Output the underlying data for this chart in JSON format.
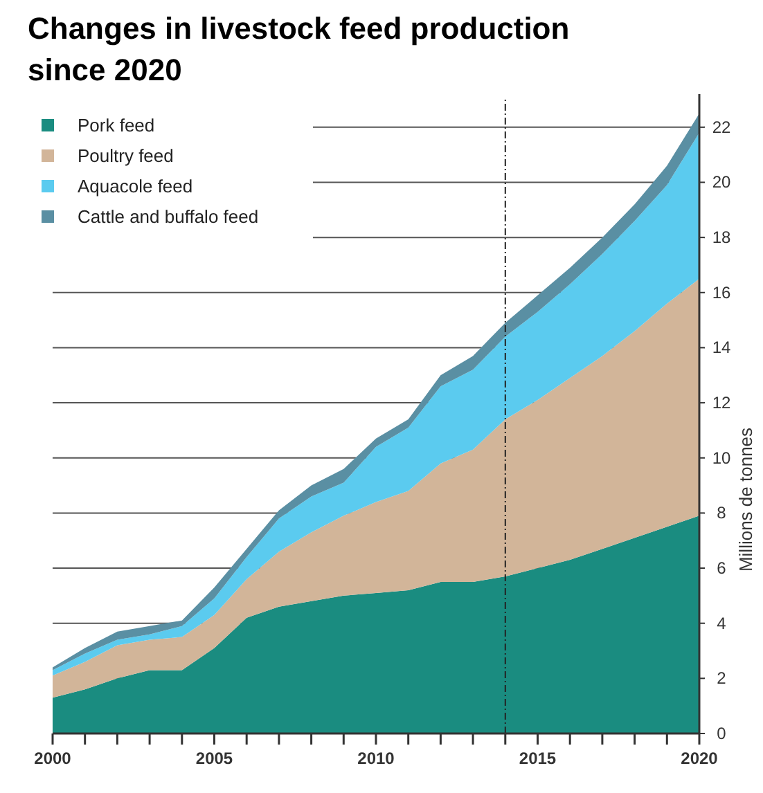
{
  "chart_data": {
    "type": "area",
    "stacked": true,
    "title": "Changes in livestock feed production since 2020",
    "ylabel": "Millions de tonnes",
    "x": [
      2000,
      2001,
      2002,
      2003,
      2004,
      2005,
      2006,
      2007,
      2008,
      2009,
      2010,
      2011,
      2012,
      2013,
      2014,
      2015,
      2016,
      2017,
      2018,
      2019,
      2020
    ],
    "series": [
      {
        "name": "Pork feed",
        "color": "#1a8c80",
        "values": [
          1.3,
          1.6,
          2.0,
          2.3,
          2.3,
          3.1,
          4.2,
          4.6,
          4.8,
          5.0,
          5.1,
          5.2,
          5.5,
          5.5,
          5.7,
          6.0,
          6.3,
          6.7,
          7.1,
          7.5,
          7.9
        ]
      },
      {
        "name": "Poultry feed",
        "color": "#d2b599",
        "values": [
          0.8,
          1.0,
          1.2,
          1.1,
          1.2,
          1.2,
          1.4,
          2.0,
          2.5,
          2.9,
          3.3,
          3.6,
          4.3,
          4.8,
          5.7,
          6.1,
          6.6,
          7.0,
          7.5,
          8.1,
          8.6
        ]
      },
      {
        "name": "Aquacole feed",
        "color": "#5bcbef",
        "values": [
          0.2,
          0.3,
          0.2,
          0.2,
          0.4,
          0.6,
          0.8,
          1.2,
          1.3,
          1.2,
          2.0,
          2.3,
          2.8,
          2.9,
          3.0,
          3.2,
          3.4,
          3.7,
          4.0,
          4.3,
          5.3
        ]
      },
      {
        "name": "Cattle and buffalo feed",
        "color": "#5a8fa3",
        "values": [
          0.1,
          0.2,
          0.3,
          0.3,
          0.2,
          0.4,
          0.3,
          0.3,
          0.4,
          0.5,
          0.3,
          0.3,
          0.4,
          0.5,
          0.5,
          0.6,
          0.6,
          0.6,
          0.6,
          0.7,
          0.7
        ]
      }
    ],
    "xlim": [
      2000,
      2020
    ],
    "xticks": [
      2000,
      {
        "value": 2001,
        "label": null
      },
      {
        "value": 2002,
        "label": null
      },
      {
        "value": 2003,
        "label": null
      },
      {
        "value": 2004,
        "label": null
      },
      2005,
      {
        "value": 2006,
        "label": null
      },
      {
        "value": 2007,
        "label": null
      },
      {
        "value": 2008,
        "label": null
      },
      {
        "value": 2009,
        "label": null
      },
      2010,
      {
        "value": 2011,
        "label": null
      },
      {
        "value": 2012,
        "label": null
      },
      {
        "value": 2013,
        "label": null
      },
      {
        "value": 2014,
        "label": null
      },
      2015,
      {
        "value": 2016,
        "label": null
      },
      {
        "value": 2017,
        "label": null
      },
      {
        "value": 2018,
        "label": null
      },
      {
        "value": 2019,
        "label": null
      },
      2020
    ],
    "ylim": [
      0,
      23
    ],
    "yticks": [
      0,
      2,
      4,
      6,
      8,
      10,
      12,
      14,
      16,
      18,
      20,
      22
    ],
    "grid": "y",
    "legend": "top left",
    "ref_lines": [
      {
        "axis": "x",
        "value": 2014,
        "line_style": "dashed",
        "color": "#222222"
      }
    ]
  }
}
